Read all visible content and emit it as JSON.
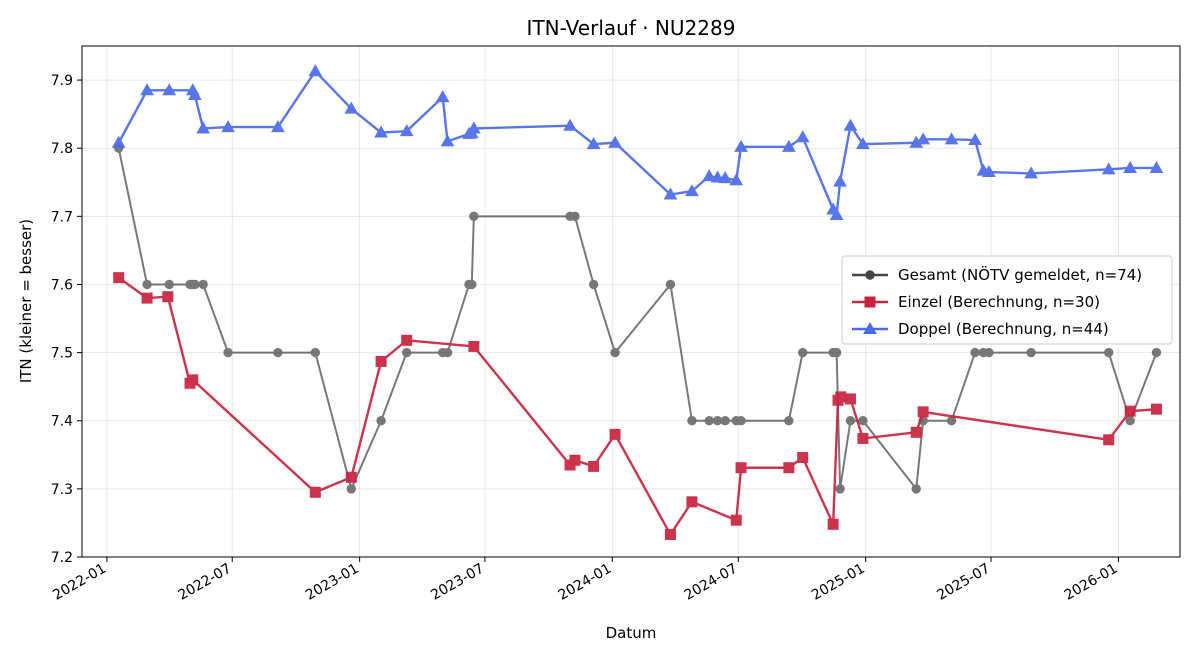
{
  "chart_data": {
    "type": "line",
    "title": "ITN-Verlauf · NU2289",
    "xlabel": "Datum",
    "ylabel": "ITN  (kleiner = besser)",
    "x_axis": "date",
    "xlim": [
      "2021-11-26",
      "2026-03-31"
    ],
    "ylim": [
      7.2,
      7.95
    ],
    "yticks": [
      7.2,
      7.3,
      7.4,
      7.5,
      7.6,
      7.7,
      7.8,
      7.9
    ],
    "xticks": [
      "2022-01-01",
      "2022-07-01",
      "2023-01-01",
      "2023-07-01",
      "2024-01-01",
      "2024-07-01",
      "2025-01-01",
      "2025-07-01",
      "2026-01-01"
    ],
    "xtick_labels": [
      "2022-01",
      "2022-07",
      "2023-01",
      "2023-07",
      "2024-01",
      "2024-07",
      "2025-01",
      "2025-07",
      "2026-01"
    ],
    "grid": true,
    "legend_position": "right",
    "series": [
      {
        "name": "Gesamt (NÖTV gemeldet, n=74)",
        "color": "#454545",
        "marker": "circle",
        "points": [
          [
            "2022-01-18",
            7.8
          ],
          [
            "2022-02-28",
            7.6
          ],
          [
            "2022-04-01",
            7.6
          ],
          [
            "2022-05-01",
            7.6
          ],
          [
            "2022-05-05",
            7.6
          ],
          [
            "2022-05-08",
            7.6
          ],
          [
            "2022-05-20",
            7.6
          ],
          [
            "2022-06-25",
            7.5
          ],
          [
            "2022-09-05",
            7.5
          ],
          [
            "2022-10-29",
            7.5
          ],
          [
            "2022-12-20",
            7.3
          ],
          [
            "2023-02-01",
            7.4
          ],
          [
            "2023-03-10",
            7.5
          ],
          [
            "2023-05-01",
            7.5
          ],
          [
            "2023-05-08",
            7.5
          ],
          [
            "2023-06-08",
            7.6
          ],
          [
            "2023-06-12",
            7.6
          ],
          [
            "2023-06-15",
            7.7
          ],
          [
            "2023-11-01",
            7.7
          ],
          [
            "2023-11-08",
            7.7
          ],
          [
            "2023-12-05",
            7.6
          ],
          [
            "2024-01-05",
            7.5
          ],
          [
            "2024-03-25",
            7.6
          ],
          [
            "2024-04-25",
            7.4
          ],
          [
            "2024-05-20",
            7.4
          ],
          [
            "2024-06-01",
            7.4
          ],
          [
            "2024-06-12",
            7.4
          ],
          [
            "2024-06-28",
            7.4
          ],
          [
            "2024-07-05",
            7.4
          ],
          [
            "2024-09-12",
            7.4
          ],
          [
            "2024-10-02",
            7.5
          ],
          [
            "2024-11-15",
            7.5
          ],
          [
            "2024-11-20",
            7.5
          ],
          [
            "2024-11-25",
            7.3
          ],
          [
            "2024-12-10",
            7.4
          ],
          [
            "2024-12-28",
            7.4
          ],
          [
            "2025-03-15",
            7.3
          ],
          [
            "2025-03-25",
            7.4
          ],
          [
            "2025-05-05",
            7.4
          ],
          [
            "2025-06-08",
            7.5
          ],
          [
            "2025-06-20",
            7.5
          ],
          [
            "2025-06-28",
            7.5
          ],
          [
            "2025-08-28",
            7.5
          ],
          [
            "2025-12-18",
            7.5
          ],
          [
            "2026-01-18",
            7.4
          ],
          [
            "2026-02-25",
            7.5
          ]
        ]
      },
      {
        "name": "Einzel (Berechnung, n=30)",
        "color": "#c8223d",
        "marker": "square",
        "points": [
          [
            "2022-01-18",
            7.61
          ],
          [
            "2022-02-28",
            7.58
          ],
          [
            "2022-03-30",
            7.582
          ],
          [
            "2022-05-01",
            7.455
          ],
          [
            "2022-05-05",
            7.46
          ],
          [
            "2022-10-29",
            7.295
          ],
          [
            "2022-12-20",
            7.317
          ],
          [
            "2023-02-01",
            7.487
          ],
          [
            "2023-03-10",
            7.518
          ],
          [
            "2023-06-15",
            7.509
          ],
          [
            "2023-11-01",
            7.335
          ],
          [
            "2023-11-08",
            7.342
          ],
          [
            "2023-12-05",
            7.333
          ],
          [
            "2024-01-05",
            7.38
          ],
          [
            "2024-03-25",
            7.233
          ],
          [
            "2024-04-25",
            7.281
          ],
          [
            "2024-06-28",
            7.254
          ],
          [
            "2024-07-05",
            7.331
          ],
          [
            "2024-09-12",
            7.331
          ],
          [
            "2024-10-02",
            7.346
          ],
          [
            "2024-11-15",
            7.248
          ],
          [
            "2024-11-22",
            7.43
          ],
          [
            "2024-11-26",
            7.435
          ],
          [
            "2024-12-10",
            7.432
          ],
          [
            "2024-12-28",
            7.374
          ],
          [
            "2025-03-15",
            7.383
          ],
          [
            "2025-03-25",
            7.413
          ],
          [
            "2025-12-18",
            7.372
          ],
          [
            "2026-01-18",
            7.414
          ],
          [
            "2026-02-25",
            7.417
          ]
        ]
      },
      {
        "name": "Doppel (Berechnung, n=44)",
        "color": "#4a6be8",
        "marker": "triangle",
        "points": [
          [
            "2022-01-18",
            7.808
          ],
          [
            "2022-02-28",
            7.885
          ],
          [
            "2022-04-01",
            7.885
          ],
          [
            "2022-05-05",
            7.885
          ],
          [
            "2022-05-08",
            7.878
          ],
          [
            "2022-05-20",
            7.829
          ],
          [
            "2022-06-25",
            7.831
          ],
          [
            "2022-09-05",
            7.831
          ],
          [
            "2022-10-29",
            7.913
          ],
          [
            "2022-12-20",
            7.858
          ],
          [
            "2023-02-01",
            7.823
          ],
          [
            "2023-03-10",
            7.825
          ],
          [
            "2023-05-01",
            7.875
          ],
          [
            "2023-05-08",
            7.81
          ],
          [
            "2023-06-08",
            7.821
          ],
          [
            "2023-06-12",
            7.822
          ],
          [
            "2023-06-15",
            7.829
          ],
          [
            "2023-11-01",
            7.833
          ],
          [
            "2023-12-05",
            7.806
          ],
          [
            "2024-01-05",
            7.808
          ],
          [
            "2024-03-25",
            7.732
          ],
          [
            "2024-04-25",
            7.737
          ],
          [
            "2024-05-20",
            7.759
          ],
          [
            "2024-06-01",
            7.757
          ],
          [
            "2024-06-12",
            7.756
          ],
          [
            "2024-06-28",
            7.753
          ],
          [
            "2024-07-05",
            7.802
          ],
          [
            "2024-09-12",
            7.802
          ],
          [
            "2024-10-02",
            7.816
          ],
          [
            "2024-11-15",
            7.71
          ],
          [
            "2024-11-20",
            7.702
          ],
          [
            "2024-11-25",
            7.751
          ],
          [
            "2024-12-10",
            7.833
          ],
          [
            "2024-12-28",
            7.806
          ],
          [
            "2025-03-15",
            7.808
          ],
          [
            "2025-03-25",
            7.813
          ],
          [
            "2025-05-05",
            7.813
          ],
          [
            "2025-06-08",
            7.812
          ],
          [
            "2025-06-20",
            7.767
          ],
          [
            "2025-06-28",
            7.765
          ],
          [
            "2025-08-28",
            7.763
          ],
          [
            "2025-12-18",
            7.769
          ],
          [
            "2026-01-18",
            7.771
          ],
          [
            "2026-02-25",
            7.771
          ]
        ]
      }
    ]
  }
}
